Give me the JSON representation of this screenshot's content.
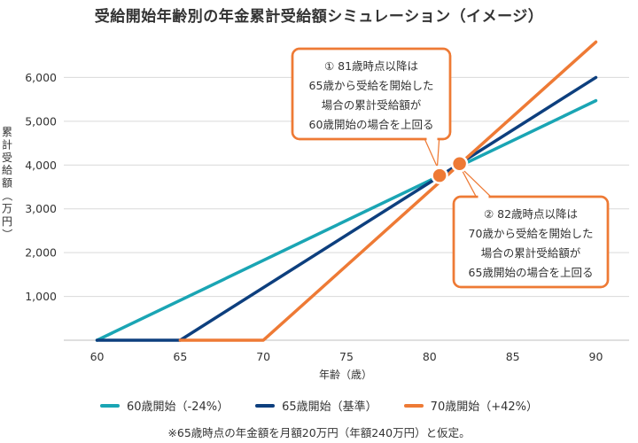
{
  "chart_data": {
    "type": "line",
    "title": "受給開始年齢別の年金累計受給額シミュレーション（イメージ）",
    "xlabel": "年齢（歳）",
    "ylabel": "累計受給額（万円）",
    "xlim": [
      58,
      92
    ],
    "ylim": [
      0,
      7000
    ],
    "x_ticks": [
      60,
      65,
      70,
      75,
      80,
      85,
      90
    ],
    "y_ticks": [
      1000,
      2000,
      3000,
      4000,
      5000,
      6000
    ],
    "y_tick_labels": [
      "1,000",
      "2,000",
      "3,000",
      "4,000",
      "5,000",
      "6,000"
    ],
    "grid": "horizontal",
    "legend_position": "bottom",
    "series": [
      {
        "name": "60歳開始（-24%）",
        "color": "#1aa5b4",
        "x": [
          60,
          90
        ],
        "y": [
          0,
          5470
        ]
      },
      {
        "name": "65歳開始（基準）",
        "color": "#0d3f7e",
        "x": [
          60,
          65,
          90
        ],
        "y": [
          0,
          0,
          6000
        ]
      },
      {
        "name": "70歳開始（+42%）",
        "color": "#ee7a35",
        "x": [
          65,
          70,
          90
        ],
        "y": [
          0,
          0,
          6810
        ]
      }
    ],
    "annotations": [
      {
        "id": "callout1",
        "marker": {
          "x": 80.6,
          "y": 3760
        },
        "lines": [
          "① 81歳時点以降は",
          "65歳から受給を開始した",
          "場合の累計受給額が",
          "60歳開始の場合を上回る"
        ]
      },
      {
        "id": "callout2",
        "marker": {
          "x": 81.8,
          "y": 4030
        },
        "lines": [
          "② 82歳時点以降は",
          "70歳から受給を開始した",
          "場合の累計受給額が",
          "65歳開始の場合を上回る"
        ]
      }
    ]
  },
  "footnote": "※65歳時点の年金額を月額20万円（年額240万円）と仮定。"
}
